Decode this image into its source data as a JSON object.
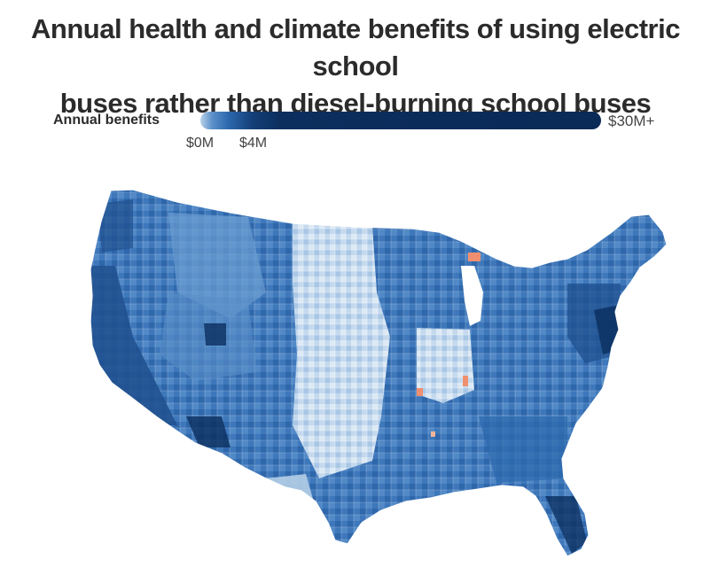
{
  "title": {
    "line1": "Annual health and climate benefits of using electric school",
    "line2": "buses rather than diesel-burning school buses"
  },
  "legend": {
    "label": "Annual benefits",
    "min_tick": "$0M",
    "mid_tick": "$4M",
    "max_label": "$30M+"
  },
  "colors": {
    "lightest": "#dce8f3",
    "light": "#b3cde6",
    "mid": "#6b9dd0",
    "base": "#3e78bb",
    "dark": "#1f4f8d",
    "darkest": "#0b2e5e",
    "negative": "#f08f6f"
  },
  "map": {
    "subject": "Contiguous United States by county",
    "icon": "us-county-map"
  }
}
